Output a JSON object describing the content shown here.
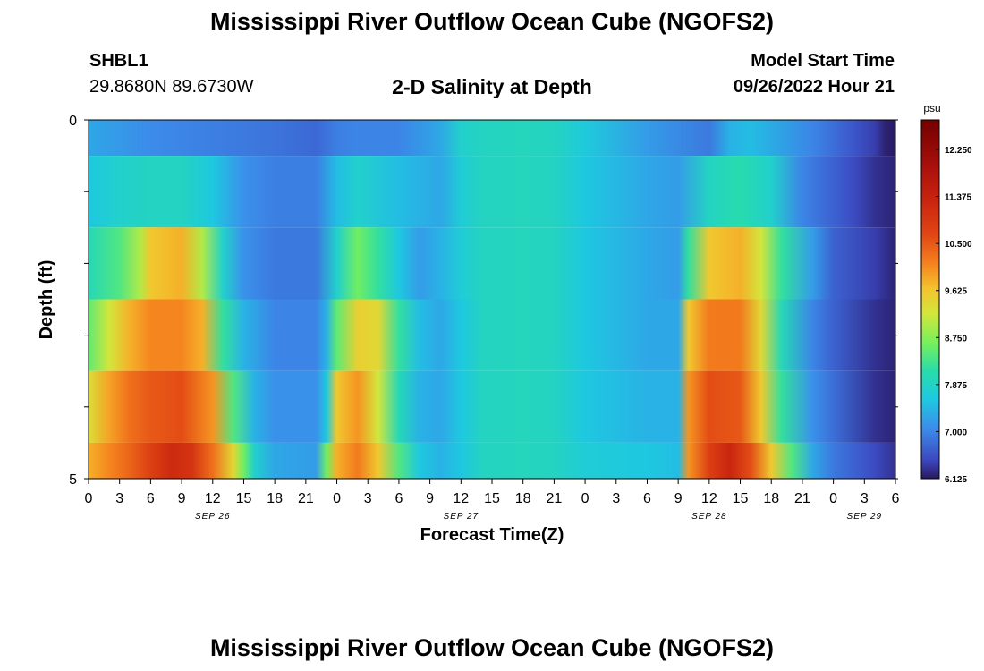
{
  "page": {
    "title_top": "Mississippi River Outflow Ocean Cube (NGOFS2)",
    "title_bottom": "Mississippi River Outflow Ocean Cube (NGOFS2)"
  },
  "header": {
    "station_id": "SHBL1",
    "coords": "29.8680N  89.6730W",
    "subtitle": "2-D Salinity at Depth",
    "start_label": "Model Start Time",
    "start_value": "09/26/2022 Hour 21"
  },
  "chart_data": {
    "type": "heatmap",
    "title": "2-D Salinity at Depth",
    "xlabel": "Forecast Time(Z)",
    "ylabel": "Depth (ft)",
    "x_tick_labels": [
      "0",
      "3",
      "6",
      "9",
      "12",
      "15",
      "18",
      "21",
      "0",
      "3",
      "6",
      "9",
      "12",
      "15",
      "18",
      "21",
      "0",
      "3",
      "6",
      "9",
      "12",
      "15",
      "18",
      "21",
      "0",
      "3",
      "6"
    ],
    "date_labels": [
      {
        "label": "SEP 26",
        "hour": 12
      },
      {
        "label": "SEP 27",
        "hour": 36
      },
      {
        "label": "SEP 28",
        "hour": 60
      },
      {
        "label": "SEP 29",
        "hour": 75
      }
    ],
    "x_range_hours": [
      0,
      78
    ],
    "y_tick_labels": [
      "0",
      "5"
    ],
    "ylim": [
      0,
      5
    ],
    "colorbar": {
      "unit": "psu",
      "range": [
        6.125,
        12.8
      ],
      "tick_labels": [
        "12.250",
        "11.375",
        "10.500",
        "9.625",
        "8.750",
        "7.875",
        "7.000",
        "6.125"
      ],
      "tick_values": [
        12.25,
        11.375,
        10.5,
        9.625,
        8.75,
        7.875,
        7.0,
        6.125
      ]
    },
    "depth_bands": [
      {
        "y0": 0.0,
        "y1": 0.5,
        "hours": [
          0,
          6,
          12,
          18,
          22,
          24,
          26,
          30,
          34,
          36,
          38,
          42,
          45,
          48,
          54,
          60,
          62,
          64,
          70,
          74,
          76,
          77,
          78
        ],
        "values": [
          7.3,
          7.05,
          6.95,
          6.85,
          6.75,
          6.95,
          7.0,
          7.0,
          7.3,
          7.8,
          7.9,
          7.95,
          7.9,
          7.65,
          7.2,
          6.9,
          7.4,
          7.5,
          7.0,
          6.6,
          6.4,
          6.2,
          6.0
        ]
      },
      {
        "y0": 0.5,
        "y1": 1.5,
        "hours": [
          0,
          3,
          6,
          9,
          12,
          15,
          18,
          22,
          24,
          26,
          30,
          34,
          36,
          38,
          42,
          45,
          48,
          54,
          57,
          60,
          63,
          66,
          69,
          72,
          74,
          76,
          78
        ],
        "values": [
          7.6,
          7.8,
          7.9,
          7.9,
          7.6,
          7.1,
          6.95,
          6.95,
          7.5,
          7.8,
          7.5,
          7.3,
          7.7,
          7.9,
          7.95,
          7.9,
          7.6,
          7.3,
          7.2,
          7.9,
          8.1,
          7.8,
          7.0,
          6.7,
          6.5,
          6.3,
          6.2
        ]
      },
      {
        "y0": 1.5,
        "y1": 2.5,
        "hours": [
          0,
          3,
          5,
          6,
          9,
          11,
          13,
          15,
          18,
          22,
          24,
          26,
          28,
          30,
          32,
          34,
          36,
          38,
          42,
          45,
          48,
          54,
          57,
          58,
          60,
          63,
          65,
          67,
          70,
          72,
          76,
          78
        ],
        "values": [
          8.0,
          8.4,
          9.0,
          9.6,
          9.8,
          9.0,
          7.8,
          7.1,
          6.9,
          6.9,
          7.8,
          8.6,
          8.2,
          7.6,
          7.2,
          7.4,
          7.7,
          7.9,
          7.95,
          7.9,
          7.6,
          7.3,
          7.2,
          8.2,
          9.6,
          9.8,
          9.2,
          8.2,
          7.2,
          6.7,
          6.4,
          6.2
        ]
      },
      {
        "y0": 2.5,
        "y1": 3.5,
        "hours": [
          0,
          2,
          4,
          6,
          9,
          11,
          13,
          15,
          18,
          22,
          23,
          24,
          26,
          28,
          30,
          32,
          34,
          36,
          38,
          42,
          45,
          48,
          54,
          57,
          58,
          60,
          63,
          65,
          67,
          70,
          72,
          76,
          78
        ],
        "values": [
          8.5,
          9.2,
          9.8,
          10.1,
          10.1,
          9.8,
          8.2,
          7.4,
          7.0,
          7.0,
          7.4,
          8.5,
          9.5,
          9.4,
          8.2,
          7.5,
          7.3,
          7.6,
          7.9,
          7.95,
          7.9,
          7.6,
          7.3,
          7.3,
          9.6,
          10.2,
          10.2,
          9.4,
          8.0,
          7.0,
          6.7,
          6.3,
          6.2
        ]
      },
      {
        "y0": 3.5,
        "y1": 4.5,
        "hours": [
          0,
          2,
          4,
          6,
          9,
          12,
          14,
          16,
          18,
          22,
          23,
          24,
          26,
          28,
          30,
          32,
          34,
          36,
          38,
          42,
          45,
          48,
          54,
          57,
          58,
          60,
          63,
          65,
          67,
          70,
          72,
          76,
          78
        ],
        "values": [
          9.3,
          9.9,
          10.3,
          10.5,
          10.6,
          10.0,
          8.4,
          7.4,
          7.1,
          7.1,
          7.6,
          9.6,
          10.0,
          9.2,
          8.0,
          7.4,
          7.3,
          7.6,
          7.9,
          7.95,
          7.9,
          7.6,
          7.4,
          7.4,
          10.0,
          10.6,
          10.5,
          9.6,
          8.2,
          7.1,
          6.8,
          6.3,
          6.2
        ]
      },
      {
        "y0": 4.5,
        "y1": 5.0,
        "hours": [
          0,
          2,
          4,
          6,
          8,
          10,
          12,
          14,
          15,
          16,
          18,
          22,
          23,
          24,
          26,
          28,
          30,
          32,
          34,
          36,
          38,
          42,
          45,
          48,
          54,
          57,
          58,
          60,
          62,
          64,
          66,
          68,
          70,
          72,
          76,
          78
        ],
        "values": [
          9.8,
          10.1,
          10.4,
          10.8,
          11.2,
          11.0,
          10.3,
          9.4,
          8.6,
          7.8,
          7.3,
          7.2,
          8.6,
          9.8,
          10.2,
          9.6,
          8.4,
          7.6,
          7.4,
          7.6,
          7.9,
          7.95,
          7.9,
          7.7,
          7.6,
          7.5,
          10.0,
          10.8,
          11.3,
          10.6,
          9.6,
          8.4,
          7.3,
          6.9,
          6.5,
          6.3
        ]
      }
    ]
  }
}
